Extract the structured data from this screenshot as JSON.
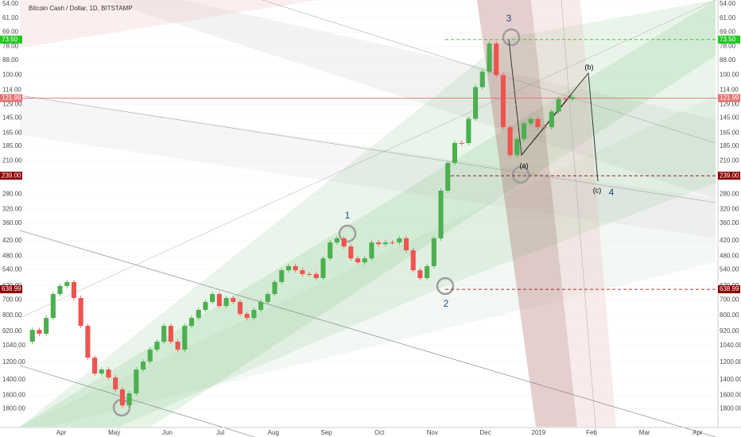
{
  "chart_data": {
    "type": "candlestick",
    "title": "Bitcoin Cash / Dollar, 1D, BITSTAMP",
    "log_scale": true,
    "y_inverted": true,
    "grid": true,
    "ylim": [
      54,
      2100
    ],
    "yticks": [
      {
        "value": 54,
        "label": "54.00"
      },
      {
        "value": 61,
        "label": "61.00"
      },
      {
        "value": 69,
        "label": "69.00"
      },
      {
        "value": 78,
        "label": "78.00"
      },
      {
        "value": 88,
        "label": "88.00"
      },
      {
        "value": 100,
        "label": "100.00"
      },
      {
        "value": 114,
        "label": "114.00"
      },
      {
        "value": 129,
        "label": "129.00"
      },
      {
        "value": 145,
        "label": "145.00"
      },
      {
        "value": 165,
        "label": "165.00"
      },
      {
        "value": 185,
        "label": "185.00"
      },
      {
        "value": 210,
        "label": "210.00"
      },
      {
        "value": 240,
        "label": "240.00"
      },
      {
        "value": 280,
        "label": "280.00"
      },
      {
        "value": 320,
        "label": "320.00"
      },
      {
        "value": 360,
        "label": "360.00"
      },
      {
        "value": 420,
        "label": "420.00"
      },
      {
        "value": 480,
        "label": "480.00"
      },
      {
        "value": 540,
        "label": "540.00"
      },
      {
        "value": 620,
        "label": "620.00"
      },
      {
        "value": 700,
        "label": "700.00"
      },
      {
        "value": 800,
        "label": "800.00"
      },
      {
        "value": 920,
        "label": "920.00"
      },
      {
        "value": 1040,
        "label": "1040.00"
      },
      {
        "value": 1200,
        "label": "1200.00"
      },
      {
        "value": 1400,
        "label": "1400.00"
      },
      {
        "value": 1600,
        "label": "1600.00"
      },
      {
        "value": 1800,
        "label": "1800.00"
      }
    ],
    "x_axis_labels": [
      "Apr",
      "May",
      "Jun",
      "Jul",
      "Aug",
      "Sep",
      "Oct",
      "Nov",
      "Dec",
      "2019",
      "Feb",
      "Mar",
      "Apr"
    ],
    "series": [
      {
        "up_color": "#4caf50",
        "down_color": "#ef5350",
        "values": [
          1006,
          908,
          939,
          819,
          666,
          621,
          600,
          689,
          877,
          1155,
          1326,
          1280,
          1372,
          1521,
          1745,
          1574,
          1280,
          1195,
          1078,
          1006,
          877,
          1006,
          1078,
          877,
          819,
          764,
          713,
          666,
          738,
          689,
          713,
          791,
          819,
          764,
          713,
          666,
          600,
          542,
          523,
          542,
          560,
          560,
          580,
          489,
          426,
          411,
          441,
          489,
          506,
          489,
          426,
          432,
          426,
          426,
          411,
          456,
          542,
          580,
          523,
          411,
          272,
          214,
          180,
          180,
          146,
          111,
          97,
          76,
          100,
          157,
          200,
          174,
          152,
          146,
          157,
          157,
          137,
          123,
          123,
          121
        ]
      }
    ],
    "levels": [
      {
        "value": 73.5,
        "label": "73.50",
        "color": "#22c822",
        "dashed": true
      },
      {
        "value": 121.99,
        "label": "121.99",
        "color": "#e57373",
        "dashed": false
      },
      {
        "value": 239,
        "label": "239.00",
        "color": "#8b0000",
        "dashed": true
      },
      {
        "value": 638.99,
        "label": "638.99",
        "color": "#8b0000",
        "dashed": true
      }
    ],
    "annotations": [
      "1",
      "2",
      "3",
      "4",
      "(a)",
      "(b)",
      "(c)"
    ]
  }
}
